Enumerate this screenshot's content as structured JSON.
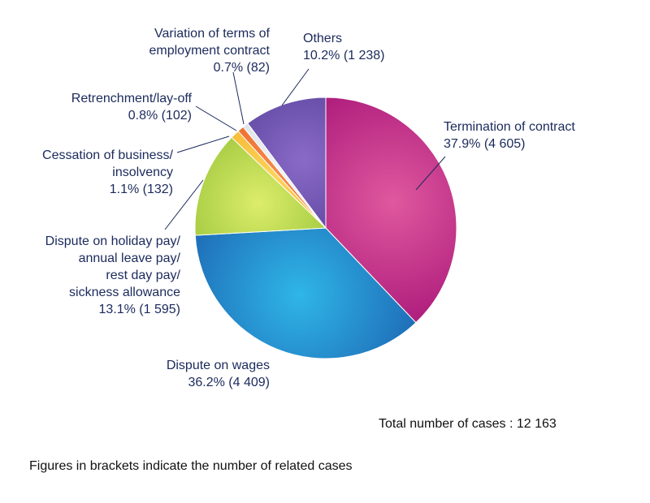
{
  "chart_data": {
    "type": "pie",
    "slices": [
      {
        "name": "Termination of contract",
        "label_lines": [
          "Termination of contract"
        ],
        "percent": 37.9,
        "value": "4 605",
        "color": "#b0207e",
        "highlight": "#e0589e"
      },
      {
        "name": "Dispute on wages",
        "label_lines": [
          "Dispute on wages"
        ],
        "percent": 36.2,
        "value": "4 409",
        "color": "#1f6fb8",
        "highlight": "#2fb6e8"
      },
      {
        "name": "Dispute on holiday pay/ annual leave pay/ rest day pay/ sickness allowance",
        "label_lines": [
          "Dispute on holiday pay/",
          "annual leave pay/",
          "rest day pay/",
          "sickness allowance"
        ],
        "percent": 13.1,
        "value": "1 595",
        "color": "#86b82c",
        "highlight": "#dced6a"
      },
      {
        "name": "Cessation of business/ insolvency",
        "label_lines": [
          "Cessation of business/",
          "insolvency"
        ],
        "percent": 1.1,
        "value": "132",
        "color": "#f2a81a",
        "highlight": "#fcd35a"
      },
      {
        "name": "Retrenchment/lay-off",
        "label_lines": [
          "Retrenchment/lay-off"
        ],
        "percent": 0.8,
        "value": "102",
        "color": "#e85a1a",
        "highlight": "#f58a4a"
      },
      {
        "name": "Variation of terms of employment contract",
        "label_lines": [
          "Variation of terms of",
          "employment contract"
        ],
        "percent": 0.7,
        "value": "82",
        "color": "#cfd8dc",
        "highlight": "#eef3f5"
      },
      {
        "name": "Others",
        "label_lines": [
          "Others"
        ],
        "percent": 10.2,
        "value": "1 238",
        "color": "#4d3a90",
        "highlight": "#8a6ac8"
      }
    ]
  },
  "footer": {
    "total": "Total number of cases : 12 163",
    "note": "Figures in brackets indicate the number of related cases"
  }
}
